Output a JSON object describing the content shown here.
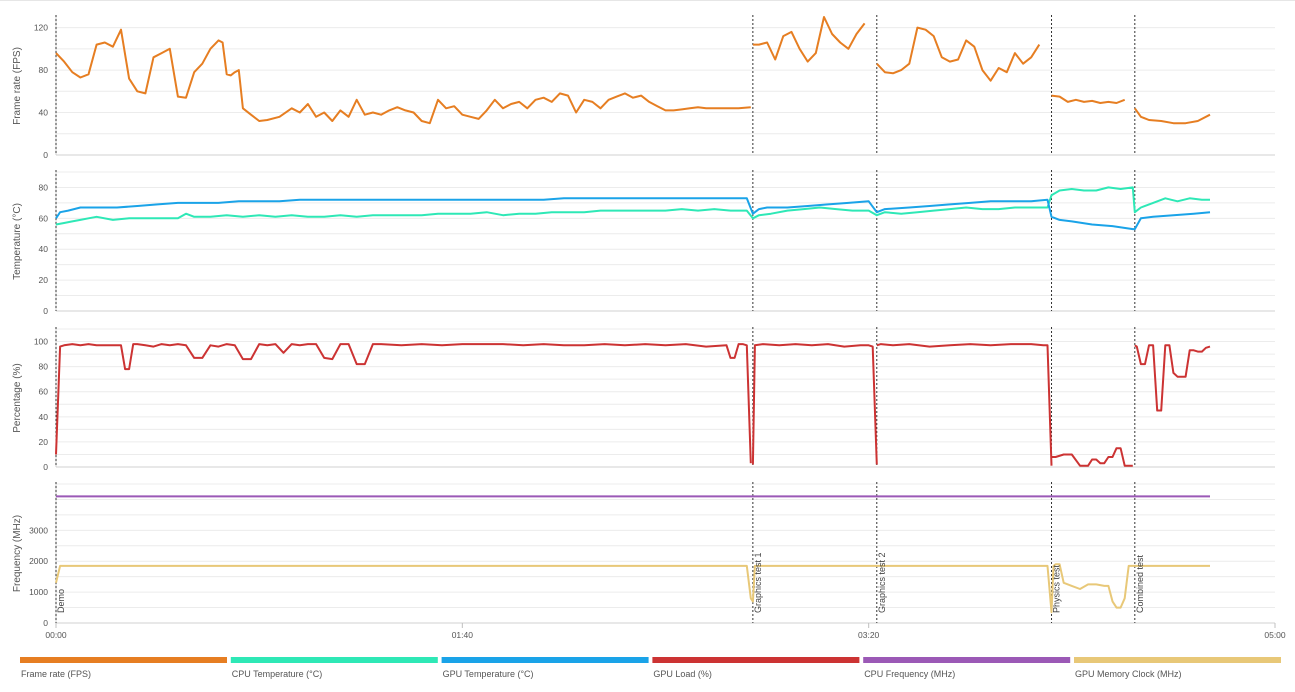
{
  "chart_data": {
    "type": "line",
    "x_axis": {
      "ticks": [
        "00:00",
        "01:40",
        "03:20",
        "05:00"
      ],
      "range_s": [
        0,
        300
      ]
    },
    "markers": [
      {
        "t": 0,
        "label": "Demo"
      },
      {
        "t": 171.5,
        "label": "Graphics test 1"
      },
      {
        "t": 202,
        "label": "Graphics test 2"
      },
      {
        "t": 245,
        "label": "Physics test"
      },
      {
        "t": 265.5,
        "label": "Combined test"
      }
    ],
    "colors": {
      "fps": "#e67e22",
      "cpu_temp": "#2ee8b6",
      "gpu_temp": "#1aa3e8",
      "gpu_load": "#cc3333",
      "cpu_freq": "#9b59b6",
      "gpu_mem": "#e8c878"
    },
    "panels": [
      {
        "id": "fps",
        "ylabel": "Frame rate (FPS)",
        "ylim": [
          0,
          130
        ],
        "yticks": [
          0,
          40,
          80,
          120
        ]
      },
      {
        "id": "temp",
        "ylabel": "Temperature (°C)",
        "ylim": [
          0,
          90
        ],
        "yticks": [
          0,
          20,
          40,
          60,
          80
        ]
      },
      {
        "id": "pct",
        "ylabel": "Percentage (%)",
        "ylim": [
          0,
          110
        ],
        "yticks": [
          0,
          20,
          40,
          60,
          80,
          100
        ]
      },
      {
        "id": "freq",
        "ylabel": "Frequency (MHz)",
        "ylim": [
          0,
          4500
        ],
        "yticks": [
          0,
          1000,
          2000,
          3000
        ]
      }
    ],
    "series": [
      {
        "name": "Frame rate (FPS)",
        "panel": "fps",
        "color_key": "fps",
        "t": [
          0,
          2,
          4,
          6,
          8,
          10,
          12,
          14,
          16,
          18,
          20,
          22,
          24,
          26,
          28,
          30,
          32,
          34,
          36,
          38,
          40,
          41,
          42,
          43,
          44,
          45,
          46,
          48,
          50,
          52,
          55,
          58,
          60,
          62,
          64,
          66,
          68,
          70,
          72,
          74,
          76,
          78,
          80,
          82,
          84,
          86,
          88,
          90,
          92,
          94,
          96,
          98,
          100,
          102,
          104,
          106,
          108,
          110,
          112,
          114,
          116,
          118,
          120,
          122,
          124,
          126,
          128,
          130,
          132,
          134,
          136,
          138,
          140,
          142,
          144,
          146,
          148,
          150,
          152,
          154,
          156,
          158,
          160,
          162,
          164,
          166,
          168,
          171
        ],
        "values": [
          96,
          88,
          78,
          73,
          76,
          104,
          106,
          102,
          118,
          72,
          60,
          58,
          92,
          96,
          100,
          55,
          54,
          78,
          86,
          100,
          108,
          106,
          76,
          75,
          78,
          80,
          44,
          38,
          32,
          33,
          36,
          44,
          40,
          48,
          36,
          40,
          32,
          42,
          36,
          52,
          38,
          40,
          38,
          42,
          45,
          42,
          40,
          32,
          30,
          52,
          44,
          46,
          38,
          36,
          34,
          42,
          52,
          44,
          48,
          50,
          44,
          52,
          54,
          50,
          58,
          56,
          40,
          52,
          50,
          44,
          52,
          55,
          58,
          54,
          56,
          50,
          46,
          42,
          42,
          43,
          44,
          45,
          44,
          44,
          44,
          44,
          44,
          45
        ]
      },
      {
        "name": "Frame rate (FPS)",
        "panel": "fps",
        "color_key": "fps",
        "t": [
          171.5,
          173,
          175,
          177,
          179,
          181,
          183,
          185,
          187,
          189,
          191,
          193,
          195,
          197,
          199
        ],
        "values": [
          104,
          104,
          106,
          90,
          112,
          116,
          100,
          88,
          96,
          130,
          114,
          106,
          100,
          114,
          124
        ]
      },
      {
        "name": "Frame rate (FPS)",
        "panel": "fps",
        "color_key": "fps",
        "t": [
          202,
          204,
          206,
          208,
          210,
          212,
          214,
          216,
          218,
          220,
          222,
          224,
          226,
          228,
          230,
          232,
          234,
          236,
          238,
          240,
          242
        ],
        "values": [
          86,
          78,
          77,
          80,
          86,
          120,
          118,
          112,
          92,
          88,
          90,
          108,
          102,
          80,
          70,
          82,
          78,
          96,
          86,
          92,
          104
        ]
      },
      {
        "name": "Frame rate (FPS)",
        "panel": "fps",
        "color_key": "fps",
        "t": [
          245,
          247,
          249,
          251,
          253,
          255,
          257,
          259,
          261,
          263
        ],
        "values": [
          56,
          55,
          50,
          52,
          50,
          51,
          49,
          50,
          49,
          52
        ]
      },
      {
        "name": "Frame rate (FPS)",
        "panel": "fps",
        "color_key": "fps",
        "t": [
          265.5,
          267,
          269,
          272,
          275,
          278,
          281,
          284
        ],
        "values": [
          44,
          36,
          33,
          32,
          30,
          30,
          32,
          38
        ]
      },
      {
        "name": "CPU Temperature (°C)",
        "panel": "temp",
        "color_key": "cpu_temp",
        "t": [
          0,
          2,
          4,
          6,
          8,
          10,
          14,
          18,
          22,
          26,
          30,
          32,
          34,
          38,
          42,
          46,
          50,
          54,
          58,
          62,
          66,
          70,
          74,
          78,
          82,
          86,
          90,
          94,
          98,
          102,
          106,
          110,
          114,
          118,
          122,
          126,
          130,
          134,
          138,
          142,
          146,
          150,
          154,
          158,
          162,
          166,
          170,
          171.5,
          173,
          176,
          180,
          184,
          188,
          192,
          196,
          200,
          202,
          204,
          208,
          212,
          216,
          220,
          224,
          228,
          232,
          236,
          240,
          244,
          245,
          247,
          250,
          253,
          256,
          259,
          262,
          265,
          265.5,
          267,
          270,
          273,
          276,
          279,
          282,
          284
        ],
        "values": [
          56,
          57,
          58,
          59,
          60,
          61,
          59,
          60,
          60,
          60,
          60,
          63,
          61,
          61,
          62,
          61,
          62,
          61,
          62,
          61,
          61,
          62,
          61,
          62,
          62,
          62,
          62,
          63,
          63,
          63,
          64,
          62,
          63,
          63,
          64,
          64,
          64,
          65,
          65,
          65,
          65,
          65,
          66,
          65,
          66,
          65,
          65,
          60,
          62,
          63,
          65,
          66,
          67,
          66,
          65,
          65,
          62,
          64,
          63,
          64,
          65,
          66,
          67,
          66,
          66,
          67,
          67,
          67,
          75,
          78,
          79,
          78,
          78,
          80,
          79,
          80,
          64,
          67,
          70,
          73,
          71,
          73,
          72,
          72
        ]
      },
      {
        "name": "GPU Temperature (°C)",
        "panel": "temp",
        "color_key": "gpu_temp",
        "t": [
          0,
          1,
          3,
          6,
          10,
          15,
          20,
          25,
          30,
          35,
          40,
          45,
          50,
          55,
          60,
          65,
          70,
          75,
          80,
          85,
          90,
          95,
          100,
          105,
          110,
          115,
          120,
          125,
          130,
          135,
          140,
          145,
          150,
          155,
          160,
          165,
          170,
          171.5,
          173,
          175,
          180,
          185,
          190,
          195,
          200,
          202,
          204,
          210,
          215,
          220,
          225,
          230,
          235,
          240,
          244,
          245,
          247,
          250,
          255,
          260,
          265,
          265.5,
          267,
          270,
          275,
          280,
          284
        ],
        "values": [
          60,
          64,
          65,
          67,
          67,
          67,
          68,
          69,
          70,
          70,
          70,
          71,
          71,
          71,
          72,
          72,
          72,
          72,
          72,
          72,
          72,
          72,
          72,
          72,
          72,
          72,
          72,
          73,
          73,
          73,
          73,
          73,
          73,
          73,
          73,
          73,
          73,
          63,
          66,
          67,
          67,
          68,
          69,
          70,
          71,
          64,
          66,
          67,
          68,
          69,
          70,
          71,
          71,
          71,
          72,
          61,
          59,
          58,
          56,
          55,
          53,
          53,
          60,
          61,
          62,
          63,
          64
        ]
      },
      {
        "name": "GPU Load (%)",
        "panel": "pct",
        "color_key": "gpu_load",
        "t": [
          0,
          1,
          2,
          4,
          6,
          8,
          10,
          12,
          14,
          16,
          17,
          18,
          19,
          20,
          22,
          24,
          26,
          28,
          30,
          32,
          34,
          36,
          38,
          40,
          42,
          44,
          46,
          48,
          50,
          52,
          54,
          56,
          58,
          60,
          62,
          64,
          66,
          68,
          70,
          72,
          74,
          76,
          78,
          80,
          85,
          90,
          95,
          100,
          105,
          110,
          115,
          120,
          125,
          130,
          135,
          140,
          145,
          150,
          155,
          160,
          165,
          166,
          167,
          168,
          169,
          170,
          171
        ],
        "values": [
          10,
          96,
          97,
          98,
          97,
          98,
          97,
          97,
          97,
          97,
          78,
          78,
          98,
          98,
          97,
          96,
          98,
          97,
          98,
          97,
          87,
          87,
          97,
          96,
          98,
          97,
          86,
          86,
          98,
          97,
          98,
          91,
          98,
          97,
          98,
          98,
          87,
          86,
          98,
          98,
          82,
          82,
          98,
          98,
          97,
          98,
          97,
          98,
          98,
          98,
          97,
          98,
          97,
          97,
          98,
          97,
          98,
          97,
          98,
          96,
          97,
          87,
          87,
          98,
          98,
          97,
          3
        ]
      },
      {
        "name": "GPU Load (%)",
        "panel": "pct",
        "color_key": "gpu_load",
        "t": [
          171.5,
          172,
          174,
          178,
          182,
          186,
          190,
          194,
          198,
          200,
          201,
          202
        ],
        "values": [
          2,
          97,
          98,
          97,
          98,
          97,
          98,
          96,
          97,
          97,
          96,
          2
        ]
      },
      {
        "name": "GPU Load (%)",
        "panel": "pct",
        "color_key": "gpu_load",
        "t": [
          202,
          203,
          206,
          210,
          215,
          220,
          225,
          230,
          235,
          240,
          243,
          244,
          245
        ],
        "values": [
          97,
          98,
          97,
          98,
          96,
          97,
          98,
          97,
          98,
          98,
          97,
          97,
          1
        ]
      },
      {
        "name": "GPU Load (%)",
        "panel": "pct",
        "color_key": "gpu_load",
        "t": [
          245,
          246,
          248,
          250,
          252,
          254,
          255,
          256,
          257,
          258,
          259,
          260,
          261,
          262,
          263,
          264,
          265
        ],
        "values": [
          8,
          8,
          10,
          10,
          1,
          1,
          6,
          6,
          3,
          3,
          8,
          8,
          15,
          15,
          1,
          1,
          1
        ]
      },
      {
        "name": "GPU Load (%)",
        "panel": "pct",
        "color_key": "gpu_load",
        "t": [
          265.5,
          266,
          267,
          268,
          269,
          270,
          271,
          272,
          273,
          274,
          275,
          276,
          277,
          278,
          279,
          280,
          281,
          282,
          283,
          284
        ],
        "values": [
          97,
          96,
          82,
          82,
          97,
          97,
          45,
          45,
          97,
          97,
          75,
          72,
          72,
          72,
          93,
          93,
          92,
          92,
          95,
          96
        ]
      },
      {
        "name": "CPU Frequency (MHz)",
        "panel": "freq",
        "color_key": "cpu_freq",
        "t": [
          0,
          284
        ],
        "values": [
          4100,
          4100
        ]
      },
      {
        "name": "GPU Memory Clock (MHz)",
        "panel": "freq",
        "color_key": "gpu_mem",
        "t": [
          0,
          1,
          170,
          171,
          171.5,
          172,
          200,
          201,
          202,
          203,
          244,
          245,
          245.5,
          246,
          247,
          248,
          250,
          252,
          254,
          256,
          258,
          259,
          260,
          261,
          262,
          263,
          264,
          265,
          265.5,
          266,
          284
        ],
        "values": [
          1300,
          1850,
          1850,
          800,
          700,
          1850,
          1850,
          1850,
          1850,
          1850,
          1850,
          350,
          1850,
          1900,
          1900,
          1300,
          1200,
          1100,
          1250,
          1250,
          1200,
          1200,
          700,
          500,
          500,
          800,
          1850,
          1850,
          1850,
          1850,
          1850
        ]
      }
    ],
    "legend": [
      {
        "label": "Frame rate (FPS)",
        "color_key": "fps"
      },
      {
        "label": "CPU Temperature (°C)",
        "color_key": "cpu_temp"
      },
      {
        "label": "GPU Temperature (°C)",
        "color_key": "gpu_temp"
      },
      {
        "label": "GPU Load (%)",
        "color_key": "gpu_load"
      },
      {
        "label": "CPU Frequency (MHz)",
        "color_key": "cpu_freq"
      },
      {
        "label": "GPU Memory Clock (MHz)",
        "color_key": "gpu_mem"
      }
    ]
  }
}
